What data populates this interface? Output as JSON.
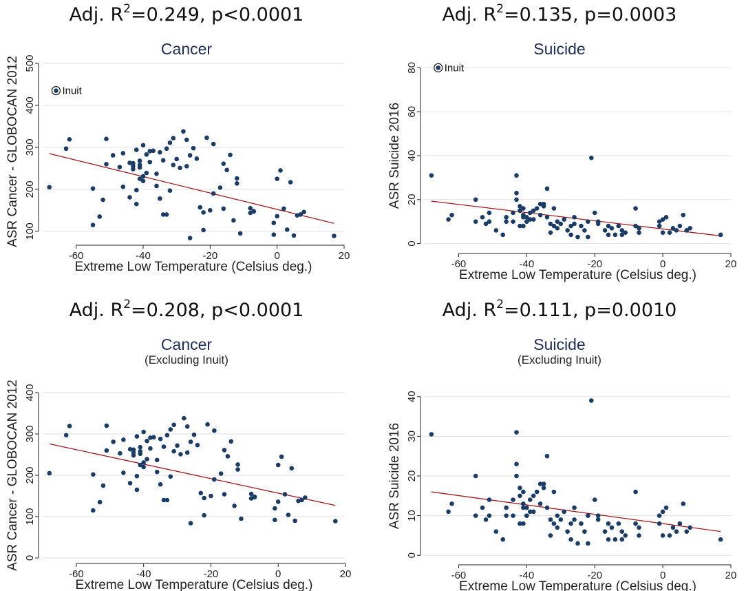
{
  "panels": [
    {
      "headline_pre": "Adj. R",
      "headline_sup": "2",
      "headline_post": "=0.249, p<0.0001",
      "title": "Cancer",
      "subtitle": ""
    },
    {
      "headline_pre": "Adj. R",
      "headline_sup": "2",
      "headline_post": "=0.135, p=0.0003",
      "title": "Suicide",
      "subtitle": ""
    },
    {
      "headline_pre": "Adj. R",
      "headline_sup": "2",
      "headline_post": "=0.208, p<0.0001",
      "title": "Cancer",
      "subtitle": "(Excluding Inuit)"
    },
    {
      "headline_pre": "Adj. R",
      "headline_sup": "2",
      "headline_post": "=0.111, p=0.0010",
      "title": "Suicide",
      "subtitle": "(Excluding Inuit)"
    }
  ],
  "chart_data": [
    {
      "type": "scatter",
      "title": "Cancer",
      "xlabel": "Extreme Low Temperature (Celsius deg.)",
      "ylabel": "ASR Cancer - GLOBOCAN 2012",
      "xlim": [
        -70,
        20
      ],
      "ylim": [
        80,
        500
      ],
      "xticks": [
        -60,
        -40,
        -20,
        0,
        20
      ],
      "yticks": [
        100,
        200,
        300,
        400,
        500
      ],
      "grid": true,
      "annotations": [
        {
          "label": "Inuit",
          "x": -66,
          "y": 435
        }
      ],
      "fit_line": {
        "x": [
          -68,
          17
        ],
        "y": [
          285,
          119
        ]
      },
      "points": {
        "x": [
          -68,
          -63,
          -62,
          -55,
          -55,
          -53,
          -52,
          -51,
          -51,
          -49,
          -47,
          -46,
          -46,
          -44,
          -44,
          -43,
          -43,
          -43,
          -42,
          -42,
          -42,
          -41,
          -41,
          -41,
          -41,
          -40,
          -40,
          -40,
          -39,
          -39,
          -38,
          -38,
          -37,
          -36,
          -36,
          -35,
          -35,
          -34,
          -34,
          -33,
          -33,
          -32,
          -32,
          -31,
          -31,
          -30,
          -29,
          -28,
          -27,
          -27,
          -26,
          -26,
          -25,
          -24,
          -23,
          -22,
          -22,
          -21,
          -20,
          -19,
          -19,
          -17,
          -16,
          -16,
          -15,
          -14,
          -13,
          -12,
          -12,
          -11,
          -8,
          -8,
          -7,
          -7,
          -1,
          -1,
          0,
          0,
          1,
          2,
          3,
          4,
          5,
          6,
          7,
          8,
          17
        ],
        "y": [
          205,
          297,
          319,
          115,
          202,
          135,
          175,
          260,
          320,
          281,
          253,
          206,
          286,
          263,
          181,
          255,
          248,
          262,
          294,
          165,
          198,
          252,
          225,
          258,
          268,
          305,
          231,
          220,
          239,
          283,
          291,
          265,
          292,
          237,
          208,
          178,
          288,
          269,
          140,
          297,
          140,
          197,
          311,
          258,
          322,
          272,
          251,
          338,
          318,
          255,
          281,
          84,
          298,
          273,
          157,
          103,
          145,
          323,
          150,
          190,
          308,
          204,
          154,
          261,
          246,
          282,
          126,
          214,
          226,
          95,
          144,
          155,
          148,
          147,
          120,
          92,
          136,
          225,
          245,
          154,
          104,
          217,
          90,
          138,
          140,
          146,
          89
        ]
      }
    },
    {
      "type": "scatter",
      "title": "Suicide",
      "xlabel": "Extreme Low Temperature (Celsius deg.)",
      "ylabel": "ASR Suicide 2016",
      "xlim": [
        -70,
        20
      ],
      "ylim": [
        -2,
        82
      ],
      "xticks": [
        -60,
        -40,
        -20,
        0,
        20
      ],
      "yticks": [
        0,
        20,
        40,
        60,
        80
      ],
      "grid": true,
      "annotations": [
        {
          "label": "Inuit",
          "x": -66,
          "y": 80
        }
      ],
      "fit_line": {
        "x": [
          -68,
          17
        ],
        "y": [
          19.3,
          3.5
        ]
      },
      "points": {
        "x": [
          -68,
          -63,
          -62,
          -55,
          -55,
          -53,
          -52,
          -51,
          -51,
          -49,
          -47,
          -46,
          -46,
          -44,
          -44,
          -43,
          -43,
          -43,
          -42,
          -42,
          -42,
          -41,
          -41,
          -41,
          -41,
          -40,
          -40,
          -40,
          -39,
          -39,
          -38,
          -38,
          -37,
          -36,
          -36,
          -35,
          -35,
          -34,
          -34,
          -33,
          -33,
          -32,
          -32,
          -31,
          -31,
          -30,
          -29,
          -28,
          -27,
          -27,
          -26,
          -26,
          -25,
          -24,
          -23,
          -22,
          -22,
          -21,
          -20,
          -19,
          -19,
          -17,
          -16,
          -16,
          -15,
          -14,
          -13,
          -12,
          -12,
          -11,
          -8,
          -8,
          -7,
          -7,
          -1,
          -1,
          0,
          0,
          1,
          2,
          3,
          4,
          5,
          6,
          7,
          8,
          17
        ],
        "y": [
          31,
          11,
          13,
          10,
          20,
          12,
          9,
          10,
          14,
          6,
          4,
          12,
          10,
          10,
          14,
          31,
          23,
          20,
          8,
          17,
          15,
          12,
          8,
          16,
          13,
          10,
          10,
          12,
          11,
          14,
          11,
          15,
          16,
          18,
          13,
          18,
          17,
          12,
          25,
          9,
          5,
          8,
          16,
          10,
          7,
          9,
          11,
          6,
          8,
          4,
          9,
          12,
          3,
          8,
          6,
          10,
          3,
          39,
          14,
          10,
          9,
          6,
          8,
          4,
          7,
          4,
          8,
          6,
          4,
          5,
          16,
          8,
          5,
          7,
          8,
          10,
          5,
          11,
          12,
          5,
          7,
          6,
          8,
          13,
          6,
          7,
          4
        ]
      }
    },
    {
      "type": "scatter",
      "title": "Cancer",
      "subtitle": "(Excluding Inuit)",
      "xlabel": "Extreme Low Temperature (Celsius deg.)",
      "ylabel": "ASR Cancer - GLOBOCAN 2012",
      "xlim": [
        -70,
        20
      ],
      "ylim": [
        0,
        400
      ],
      "xticks": [
        -60,
        -40,
        -20,
        0,
        20
      ],
      "yticks": [
        0,
        100,
        200,
        300,
        400
      ],
      "grid": true,
      "annotations": [],
      "fit_line": {
        "x": [
          -68,
          17
        ],
        "y": [
          276,
          127
        ]
      },
      "points": {
        "x": [
          -68,
          -63,
          -62,
          -55,
          -55,
          -53,
          -52,
          -51,
          -51,
          -49,
          -47,
          -46,
          -46,
          -44,
          -44,
          -43,
          -43,
          -43,
          -42,
          -42,
          -42,
          -41,
          -41,
          -41,
          -41,
          -40,
          -40,
          -40,
          -39,
          -39,
          -38,
          -38,
          -37,
          -36,
          -36,
          -35,
          -35,
          -34,
          -34,
          -33,
          -33,
          -32,
          -32,
          -31,
          -31,
          -30,
          -29,
          -28,
          -27,
          -27,
          -26,
          -26,
          -25,
          -24,
          -23,
          -22,
          -22,
          -21,
          -20,
          -19,
          -19,
          -17,
          -16,
          -16,
          -15,
          -14,
          -13,
          -12,
          -12,
          -11,
          -8,
          -8,
          -7,
          -7,
          -1,
          -1,
          0,
          0,
          1,
          2,
          3,
          4,
          5,
          6,
          7,
          8,
          17
        ],
        "y": [
          205,
          297,
          319,
          115,
          202,
          135,
          175,
          260,
          320,
          281,
          253,
          206,
          286,
          263,
          181,
          255,
          248,
          262,
          294,
          165,
          198,
          252,
          225,
          258,
          268,
          305,
          231,
          220,
          239,
          283,
          291,
          265,
          292,
          237,
          208,
          178,
          288,
          269,
          140,
          297,
          140,
          197,
          311,
          258,
          322,
          272,
          251,
          338,
          318,
          255,
          281,
          84,
          298,
          273,
          157,
          103,
          145,
          323,
          150,
          190,
          308,
          204,
          154,
          261,
          246,
          282,
          126,
          214,
          226,
          95,
          144,
          155,
          148,
          147,
          120,
          92,
          136,
          225,
          245,
          154,
          104,
          217,
          90,
          138,
          140,
          146,
          89
        ]
      }
    },
    {
      "type": "scatter",
      "title": "Suicide",
      "subtitle": "(Excluding Inuit)",
      "xlabel": "Extreme Low Temperature (Celsius deg.)",
      "ylabel": "ASR Suicide 2016",
      "xlim": [
        -70,
        20
      ],
      "ylim": [
        -1,
        41
      ],
      "xticks": [
        -60,
        -40,
        -20,
        0,
        20
      ],
      "yticks": [
        0,
        10,
        20,
        30,
        40
      ],
      "grid": true,
      "annotations": [],
      "fit_line": {
        "x": [
          -68,
          17
        ],
        "y": [
          16,
          6
        ]
      },
      "points": {
        "x": [
          -68,
          -63,
          -62,
          -55,
          -55,
          -53,
          -52,
          -51,
          -51,
          -49,
          -47,
          -46,
          -46,
          -44,
          -44,
          -43,
          -43,
          -43,
          -42,
          -42,
          -42,
          -41,
          -41,
          -41,
          -41,
          -40,
          -40,
          -40,
          -39,
          -39,
          -38,
          -38,
          -37,
          -36,
          -36,
          -35,
          -35,
          -34,
          -34,
          -33,
          -33,
          -32,
          -32,
          -31,
          -31,
          -30,
          -29,
          -28,
          -27,
          -27,
          -26,
          -26,
          -25,
          -24,
          -23,
          -22,
          -22,
          -21,
          -20,
          -19,
          -19,
          -17,
          -16,
          -16,
          -15,
          -14,
          -13,
          -12,
          -12,
          -11,
          -8,
          -8,
          -7,
          -7,
          -1,
          -1,
          0,
          0,
          1,
          2,
          3,
          4,
          5,
          6,
          7,
          8,
          17
        ],
        "y": [
          30.5,
          11,
          13,
          10,
          20,
          12,
          9,
          10,
          14,
          6,
          4,
          12,
          10,
          10,
          14,
          31,
          23,
          20,
          8,
          17,
          15,
          12,
          8,
          16,
          13,
          10,
          10,
          12,
          11,
          14,
          11,
          15,
          16,
          18,
          13,
          18,
          17,
          12,
          25,
          9,
          5,
          8,
          16,
          10,
          7,
          9,
          11,
          6,
          8,
          4,
          9,
          12,
          3,
          8,
          6,
          10,
          3,
          39,
          14,
          10,
          9,
          6,
          8,
          4,
          7,
          4,
          8,
          6,
          4,
          5,
          16,
          8,
          5,
          7,
          8,
          10,
          5,
          11,
          12,
          5,
          7,
          6,
          8,
          13,
          6,
          7,
          4
        ]
      }
    }
  ]
}
